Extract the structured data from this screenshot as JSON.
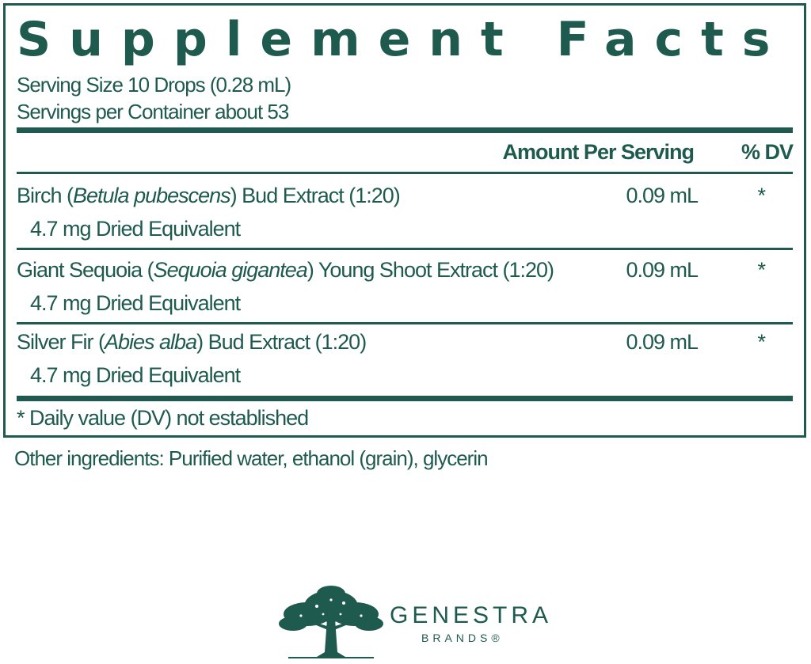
{
  "title": "Supplement Facts",
  "serving": {
    "size": "Serving Size 10 Drops (0.28 mL)",
    "per_container": "Servings per Container about 53"
  },
  "headers": {
    "amount": "Amount Per Serving",
    "dv": "% DV"
  },
  "ingredients": [
    {
      "name_pre": "Birch (",
      "name_latin": "Betula pubescens",
      "name_post": ") Bud Extract (1:20)",
      "sub": "4.7 mg Dried Equivalent",
      "amount": "0.09 mL",
      "dv": "*"
    },
    {
      "name_pre": "Giant Sequoia (",
      "name_latin": "Sequoia gigantea",
      "name_post": ") Young Shoot Extract (1:20)",
      "sub": "4.7 mg Dried Equivalent",
      "amount": "0.09 mL",
      "dv": "*"
    },
    {
      "name_pre": "Silver Fir (",
      "name_latin": "Abies alba",
      "name_post": ") Bud Extract (1:20)",
      "sub": "4.7 mg Dried Equivalent",
      "amount": "0.09 mL",
      "dv": "*"
    }
  ],
  "footnote": "* Daily value (DV) not established",
  "other_ingredients": "Other ingredients: Purified water, ethanol (grain), glycerin",
  "brand": {
    "name": "GENESTRA",
    "sub": "BRANDS®",
    "logo_icon": "tree-icon"
  },
  "colors": {
    "primary": "#1e5a4e",
    "background": "#ffffff"
  }
}
